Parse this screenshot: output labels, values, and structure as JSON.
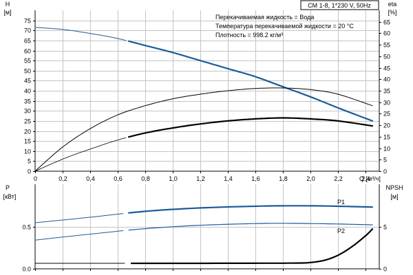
{
  "chart_data": [
    {
      "type": "line",
      "title": "CM 1-8, 1*230 V, 50Hz",
      "notes": [
        "Перекачиваемая жидкость = Вода",
        "Температура перекачиваемой жидкости = 20 °C",
        "Плотность = 998.2 кг/м³"
      ],
      "xlabel": "Q [м³/ч]",
      "xlim": [
        0,
        2.5
      ],
      "x_ticks": [
        0,
        0.2,
        0.4,
        0.6,
        0.8,
        1.0,
        1.2,
        1.4,
        1.6,
        1.8,
        2.0,
        2.2,
        2.4
      ],
      "x_tick_labels": [
        "0",
        "0,2",
        "0,4",
        "0,6",
        "0,8",
        "1,0",
        "1,2",
        "1,4",
        "1,6",
        "1,8",
        "2,0",
        "2,2",
        "2,4"
      ],
      "y_left": {
        "label_lines": [
          "H",
          "[м]"
        ],
        "lim": [
          0,
          80
        ],
        "ticks": [
          0,
          5,
          10,
          15,
          20,
          25,
          30,
          35,
          40,
          45,
          50,
          55,
          60,
          65,
          70,
          75
        ]
      },
      "y_right": {
        "label_lines": [
          "eta",
          "[%]"
        ],
        "lim": [
          0,
          70
        ],
        "ticks": [
          0,
          5,
          10,
          15,
          20,
          25,
          30,
          35,
          40,
          45,
          50,
          55,
          60,
          65
        ]
      },
      "grid": true,
      "series": [
        {
          "axis": "left",
          "color": "#1a5a9a",
          "thin_width": 1,
          "thick_width": 2.2,
          "operating_range": [
            0.67,
            2.45
          ],
          "x": [
            0,
            0.2,
            0.4,
            0.6,
            0.8,
            1.0,
            1.2,
            1.4,
            1.6,
            1.8,
            2.0,
            2.2,
            2.45
          ],
          "y": [
            71.5,
            70.5,
            68.5,
            66,
            62.5,
            59,
            55,
            51,
            47,
            42,
            37,
            31.5,
            25
          ]
        },
        {
          "axis": "right",
          "color": "#000000",
          "thin_width": 1,
          "thick_width": 1,
          "operating_range": [
            0,
            2.45
          ],
          "x": [
            0,
            0.2,
            0.4,
            0.6,
            0.8,
            1.0,
            1.2,
            1.4,
            1.6,
            1.8,
            2.0,
            2.2,
            2.45
          ],
          "y": [
            0,
            10.5,
            18.5,
            24.5,
            28.5,
            31.5,
            33.5,
            35,
            36,
            36.2,
            35.5,
            33.5,
            28.5
          ]
        },
        {
          "axis": "left",
          "color": "#000000",
          "thin_width": 0.8,
          "thick_width": 2.2,
          "operating_range": [
            0.67,
            2.45
          ],
          "x": [
            0,
            0.2,
            0.4,
            0.6,
            0.8,
            1.0,
            1.2,
            1.4,
            1.6,
            1.8,
            2.0,
            2.2,
            2.45
          ],
          "y": [
            0,
            6,
            11,
            15.5,
            19,
            21.5,
            23.5,
            25,
            26,
            26.5,
            26,
            25,
            22.5
          ]
        }
      ]
    },
    {
      "type": "line",
      "xlim": [
        0,
        2.5
      ],
      "x_ticks": [
        0,
        0.2,
        0.4,
        0.6,
        0.8,
        1.0,
        1.2,
        1.4,
        1.6,
        1.8,
        2.0,
        2.2,
        2.4
      ],
      "y_left": {
        "label_lines": [
          "P",
          "[кВт]"
        ],
        "lim": [
          0,
          1.0
        ],
        "ticks": [
          0,
          0.5
        ],
        "tick_labels": [
          "0.0",
          "0.5"
        ]
      },
      "y_right": {
        "label_lines": [
          "NPSH",
          "[м]"
        ],
        "lim": [
          0,
          10
        ],
        "ticks": [
          0,
          5
        ],
        "tick_labels": [
          "0",
          "5"
        ]
      },
      "grid": true,
      "series": [
        {
          "name": "P1",
          "axis": "left",
          "color": "#1a5a9a",
          "thin_width": 1,
          "thick_width": 2.2,
          "operating_range": [
            0.67,
            2.45
          ],
          "x": [
            0,
            0.4,
            0.8,
            1.2,
            1.6,
            1.8,
            2.0,
            2.2,
            2.45
          ],
          "y": [
            0.545,
            0.61,
            0.68,
            0.72,
            0.74,
            0.745,
            0.745,
            0.74,
            0.73
          ]
        },
        {
          "name": "P2",
          "axis": "left",
          "color": "#1a5a9a",
          "thin_width": 1,
          "thick_width": 1.2,
          "operating_range": [
            0.67,
            2.45
          ],
          "x": [
            0,
            0.4,
            0.8,
            1.2,
            1.6,
            1.8,
            2.0,
            2.2,
            2.45
          ],
          "y": [
            0.34,
            0.41,
            0.475,
            0.515,
            0.535,
            0.538,
            0.535,
            0.53,
            0.52
          ]
        },
        {
          "axis": "right",
          "color": "#000000",
          "thin_width": 1,
          "thick_width": 2.2,
          "operating_range": [
            0.67,
            2.45
          ],
          "x": [
            0,
            0.5,
            1.0,
            1.5,
            1.9,
            2.0,
            2.1,
            2.2,
            2.3,
            2.4,
            2.45
          ],
          "y": [
            0.65,
            0.65,
            0.65,
            0.66,
            0.68,
            0.75,
            1.0,
            1.6,
            2.6,
            3.9,
            4.7
          ]
        }
      ]
    }
  ]
}
